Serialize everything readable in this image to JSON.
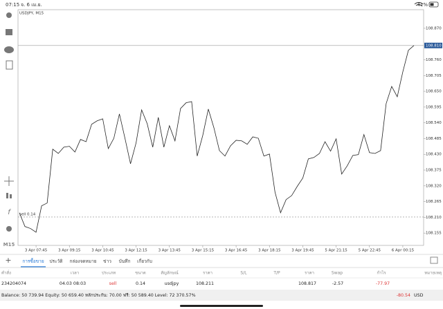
{
  "status": {
    "time": "07:15",
    "date": "จ. 6 เม.ย.",
    "battery": "41%"
  },
  "timeframe": "M15",
  "chart_data": {
    "type": "line",
    "title": "USDJPY, M15",
    "color": "#222222",
    "categories": [
      null,
      null,
      null,
      "3 Apr 07:45",
      null,
      null,
      null,
      null,
      null,
      "3 Apr 09:15",
      null,
      null,
      null,
      null,
      null,
      "3 Apr 10:45",
      null,
      null,
      null,
      null,
      null,
      "3 Apr 12:15",
      null,
      null,
      null,
      null,
      null,
      "3 Apr 13:45",
      null,
      null,
      null,
      null,
      null,
      "3 Apr 15:15",
      null,
      null,
      null,
      null,
      null,
      "3 Apr 16:45",
      null,
      null,
      null,
      null,
      null,
      "3 Apr 18:15",
      null,
      null,
      null,
      null,
      null,
      "3 Apr 19:45",
      null,
      null,
      null,
      null,
      null,
      "5 Apr 21:15",
      null,
      null,
      null,
      null,
      null,
      "5 Apr 22:45",
      null,
      null,
      null,
      null,
      null,
      "6 Apr 00:15",
      null,
      null
    ],
    "values": [
      108.226,
      108.178,
      108.171,
      108.158,
      108.25,
      108.26,
      108.448,
      108.433,
      108.455,
      108.458,
      108.438,
      108.482,
      108.474,
      108.535,
      108.547,
      108.554,
      108.45,
      108.486,
      108.571,
      108.486,
      108.397,
      108.47,
      108.585,
      108.537,
      108.455,
      108.559,
      108.455,
      108.53,
      108.477,
      108.59,
      108.61,
      108.614,
      108.424,
      108.496,
      108.588,
      108.523,
      108.443,
      108.424,
      108.46,
      108.479,
      108.477,
      108.465,
      108.491,
      108.486,
      108.424,
      108.431,
      108.298,
      108.226,
      108.272,
      108.286,
      108.318,
      108.347,
      108.414,
      108.419,
      108.433,
      108.474,
      108.441,
      108.484,
      108.361,
      108.39,
      108.426,
      108.429,
      108.499,
      108.436,
      108.433,
      108.443,
      108.607,
      108.667,
      108.631,
      108.718,
      108.793,
      108.81
    ],
    "ylim": [
      108.112,
      108.935
    ],
    "yticks": [
      {
        "value": 108.87,
        "label": "108.870"
      },
      {
        "value": 108.76,
        "label": "108.760"
      },
      {
        "value": 108.705,
        "label": "108.705"
      },
      {
        "value": 108.65,
        "label": "108.650"
      },
      {
        "value": 108.595,
        "label": "108.595"
      },
      {
        "value": 108.54,
        "label": "108.540"
      },
      {
        "value": 108.485,
        "label": "108.485"
      },
      {
        "value": 108.43,
        "label": "108.430"
      },
      {
        "value": 108.375,
        "label": "108.375"
      },
      {
        "value": 108.32,
        "label": "108.320"
      },
      {
        "value": 108.265,
        "label": "108.265"
      },
      {
        "value": 108.21,
        "label": "108.210"
      },
      {
        "value": 108.155,
        "label": "108.155"
      }
    ],
    "current_price": {
      "value": 108.81,
      "label": "108.810"
    },
    "order_line": {
      "value": 108.211,
      "label": "sell 0.14"
    }
  },
  "tabs": [
    "การซื้อขาย",
    "ประวัติ",
    "กล่องจดหมาย",
    "ข่าว",
    "บันทึก",
    "เกี่ยวกับ"
  ],
  "table": {
    "columns": [
      "คำสั่ง",
      "เวลา",
      "ประเภท",
      "ขนาด",
      "สัญลักษณ์",
      "ราคา",
      "S/L",
      "T/P",
      "ราคา",
      "Swap",
      "กำไร",
      "หมายเหตุ"
    ],
    "row": {
      "order": "234204074",
      "time": "04.03 08:03",
      "type": "sell",
      "size": "0.14",
      "symbol": "usdjpy",
      "price": "108.211",
      "price_now": "108.817",
      "swap": "-2.57",
      "profit": "-77.97"
    }
  },
  "footer": {
    "summary": "Balance: 50 739.94 Equity: 50 659.40 หลักประกัน: 70.00 ฟรี: 50 589.40 Level: 72 370.57%",
    "total": "-80.54",
    "currency": "USD"
  }
}
